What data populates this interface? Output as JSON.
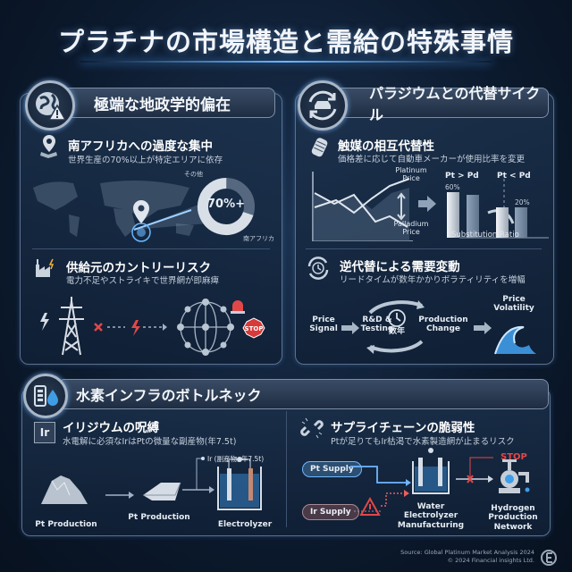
{
  "title": "プラチナの市場構造と需給の特殊事情",
  "colors": {
    "accent": "#4aa3ff",
    "danger": "#e04848",
    "background": "#0c1a2e"
  },
  "panel1": {
    "header": "極端な地政学的偏在",
    "header_icon": "globe-warning-icon",
    "sec1": {
      "title": "南アフリカへの過度な集中",
      "desc": "世界生産の70%以上が特定エリアに依存",
      "donut_center": "70%+",
      "label_other": "その他",
      "label_sa": "南アフリカ",
      "share_south_africa": 70
    },
    "sec2": {
      "title": "供給元のカントリーリスク",
      "desc": "電力不足やストライキで世界網が即麻痺",
      "stop": "STOP"
    }
  },
  "panel2": {
    "header": "パラジウムとの代替サイクル",
    "header_icon": "car-cycle-icon",
    "sec1": {
      "title": "触媒の相互代替性",
      "desc": "価格差に応じて自動車メーカーが使用比率を変更",
      "platinum_price": "Platinum Price",
      "palladium_price": "Palladium Price",
      "pt_gt_pd": "Pt > Pd",
      "pt_lt_pd": "Pt < Pd",
      "pct_high": "60%",
      "pct_low": "20%",
      "ratio_label": "Substitution Ratio"
    },
    "sec2": {
      "title": "逆代替による需要変動",
      "desc": "リードタイムが数年かかりボラティリティを増幅",
      "price_signal": "Price Signal",
      "rnd": "R&D & Testing",
      "years": "数年",
      "production_change": "Production Change",
      "price_volatility": "Price Volatility"
    }
  },
  "panel3": {
    "header": "水素インフラのボトルネック",
    "header_icon": "battery-water-icon",
    "sec1": {
      "title": "イリジウムの呪縛",
      "icon_text": "Ir",
      "desc": "水電解に必須なIrはPtの微量な副産物(年7.5t)",
      "ore": "Pt Production",
      "bar": "Pt Production",
      "ir_note": "Ir (副産物, 年7.5t)",
      "electrolyzer": "Electrolyzer"
    },
    "sec2": {
      "title": "サプライチェーンの脆弱性",
      "desc": "Ptが足りてもIr枯渇で水素製造網が止まるリスク",
      "pt_supply": "Pt Supply",
      "ir_supply": "Ir Supply",
      "manufacturing": "Water Electrolyzer Manufacturing",
      "stop": "STOP",
      "network": "Hydrogen Production Network"
    }
  },
  "footer": {
    "source": "Source: Global Platinum Market Analysis 2024",
    "copyright": "© 2024 Financial insights Ltd."
  }
}
